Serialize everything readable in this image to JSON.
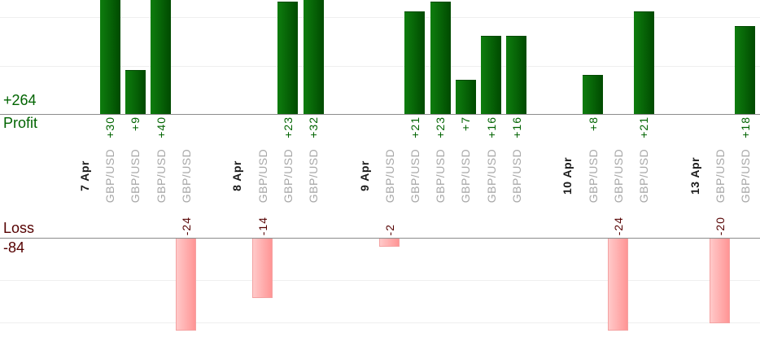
{
  "chart_data": {
    "type": "bar",
    "title": "",
    "instrument": "GBP/USD",
    "profit": {
      "label": "Profit",
      "total": "+264"
    },
    "loss": {
      "label": "Loss",
      "total": "-84"
    },
    "groups": [
      {
        "date": "7 Apr",
        "values": [
          30,
          9,
          40,
          -24
        ]
      },
      {
        "date": "8 Apr",
        "values": [
          -14,
          23,
          32
        ]
      },
      {
        "date": "9 Apr",
        "values": [
          -2,
          21,
          23,
          7,
          16,
          16
        ]
      },
      {
        "date": "10 Apr",
        "values": [
          8,
          -24,
          21
        ]
      },
      {
        "date": "13 Apr",
        "values": [
          -20,
          18
        ]
      }
    ],
    "gridlines": true,
    "profit_gridline_step": 10,
    "loss_gridline_step": 10,
    "legend": "none",
    "colors": {
      "profit_bar_light": "#0e7d0e",
      "profit_bar_dark": "#004a00",
      "profit_bar_border": "#024a02",
      "loss_bar_light": "#ffc9c9",
      "loss_bar_dark": "#ff9595",
      "loss_bar_border": "#f4a2a2",
      "profit_text": "#006400",
      "loss_text": "#550000",
      "date_text": "#1a1a1a",
      "instrument_text": "#a8a8a8",
      "axis_line": "#8c8c8c",
      "gridline": "#efefef"
    }
  }
}
